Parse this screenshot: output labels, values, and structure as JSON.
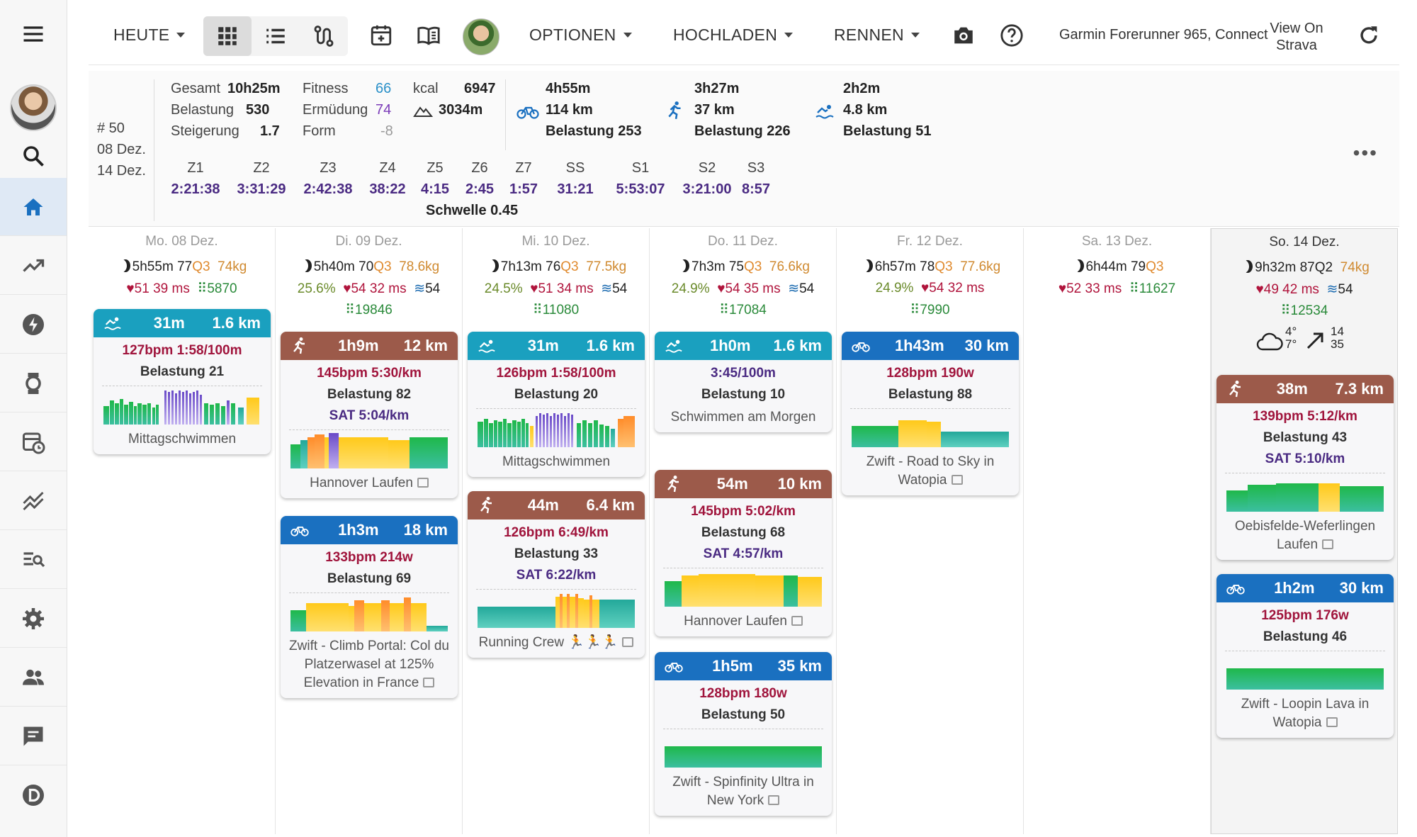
{
  "toolbar": {
    "today_label": "HEUTE",
    "options_label": "OPTIONEN",
    "upload_label": "HOCHLADEN",
    "race_label": "RENNEN",
    "device_text": "Garmin Forerunner 965, Connect",
    "strava_line1": "View On",
    "strava_line2": "Strava"
  },
  "summary": {
    "week_no": "# 50",
    "from": "08 Dez.",
    "to": "14 Dez.",
    "gesamt_lbl": "Gesamt",
    "gesamt_val": "10h25m",
    "belastung_lbl": "Belastung",
    "belastung_val": "530",
    "steigerung_lbl": "Steigerung",
    "steigerung_val": "1.7",
    "fitness_lbl": "Fitness",
    "fitness_val": "66",
    "ermuedung_lbl": "Ermüdung",
    "ermuedung_val": "74",
    "form_lbl": "Form",
    "form_val": "-8",
    "kcal_lbl": "kcal",
    "kcal_val": "6947",
    "elev_val": "3034m",
    "bike": {
      "time": "4h55m",
      "dist": "114 km",
      "load": "Belastung 253"
    },
    "run": {
      "time": "3h27m",
      "dist": "37 km",
      "load": "Belastung 226"
    },
    "swim": {
      "time": "2h2m",
      "dist": "4.8 km",
      "load": "Belastung 51"
    },
    "zones": [
      {
        "label": "Z1",
        "value": "2:21:38"
      },
      {
        "label": "Z2",
        "value": "3:31:29"
      },
      {
        "label": "Z3",
        "value": "2:42:38"
      },
      {
        "label": "Z4",
        "value": "38:22"
      },
      {
        "label": "Z5",
        "value": "4:15"
      },
      {
        "label": "Z6",
        "value": "2:45"
      },
      {
        "label": "Z7",
        "value": "1:57"
      },
      {
        "label": "SS",
        "value": "31:21"
      },
      {
        "label": "S1",
        "value": "5:53:07"
      },
      {
        "label": "S2",
        "value": "3:21:00"
      },
      {
        "label": "S3",
        "value": "8:57"
      }
    ],
    "schwelle": "Schwelle 0.45"
  },
  "days": [
    {
      "date": "Mo. 08 Dez.",
      "sleep": "5h55m",
      "score": "77",
      "q": "Q3",
      "weight": "74kg",
      "pct": "",
      "hrv": "51 39 ms",
      "wave": "",
      "steps": "5870"
    },
    {
      "date": "Di. 09 Dez.",
      "sleep": "5h40m",
      "score": "70",
      "q": "Q3",
      "weight": "78.6kg",
      "pct": "25.6%",
      "hrv": "54 32 ms",
      "wave": "54",
      "steps": "19846"
    },
    {
      "date": "Mi. 10 Dez.",
      "sleep": "7h13m",
      "score": "76",
      "q": "Q3",
      "weight": "77.5kg",
      "pct": "24.5%",
      "hrv": "51 34 ms",
      "wave": "54",
      "steps": "11080"
    },
    {
      "date": "Do. 11 Dez.",
      "sleep": "7h3m",
      "score": "75",
      "q": "Q3",
      "weight": "76.6kg",
      "pct": "24.9%",
      "hrv": "54 35 ms",
      "wave": "54",
      "steps": "17084"
    },
    {
      "date": "Fr. 12 Dez.",
      "sleep": "6h57m",
      "score": "78",
      "q": "Q3",
      "weight": "77.6kg",
      "pct": "24.9%",
      "hrv": "54 32 ms",
      "wave": "",
      "steps": "7990"
    },
    {
      "date": "Sa. 13 Dez.",
      "sleep": "6h44m",
      "score": "79",
      "q": "Q3",
      "weight": "",
      "pct": "",
      "hrv": "52 33 ms",
      "wave": "",
      "steps": "11627"
    },
    {
      "date": "So. 14 Dez.",
      "sleep": "9h32m",
      "score": "87",
      "q": "Q2",
      "weight": "74kg",
      "pct": "",
      "hrv": "49 42 ms",
      "wave": "54",
      "steps": "12534",
      "weather_temp": "4°",
      "weather_temp2": "7°",
      "wind1": "14",
      "wind2": "35"
    }
  ],
  "cards": {
    "mon_swim": {
      "dur": "31m",
      "dist": "1.6 km",
      "l1": "127bpm 1:58/100m",
      "l2": "Belastung 21",
      "name": "Mittagschwimmen"
    },
    "tue_run": {
      "dur": "1h9m",
      "dist": "12 km",
      "l1": "145bpm 5:30/km",
      "l2": "Belastung 82",
      "l3": "SAT 5:04/km",
      "name": "Hannover Laufen"
    },
    "tue_bike": {
      "dur": "1h3m",
      "dist": "18 km",
      "l1": "133bpm 214w",
      "l2": "Belastung 69",
      "name": "Zwift - Climb Portal: Col du Platzerwasel at 125% Elevation in France"
    },
    "wed_swim": {
      "dur": "31m",
      "dist": "1.6 km",
      "l1": "126bpm 1:58/100m",
      "l2": "Belastung 20",
      "name": "Mittagschwimmen"
    },
    "wed_run": {
      "dur": "44m",
      "dist": "6.4 km",
      "l1": "126bpm 6:49/km",
      "l2": "Belastung 33",
      "l3": "SAT 6:22/km",
      "name": "Running Crew 🏃🏃🏃"
    },
    "thu_swim": {
      "dur": "1h0m",
      "dist": "1.6 km",
      "l1": "3:45/100m",
      "l2": "Belastung 10",
      "name": "Schwimmen am Morgen"
    },
    "thu_run": {
      "dur": "54m",
      "dist": "10 km",
      "l1": "145bpm 5:02/km",
      "l2": "Belastung 68",
      "l3": "SAT 4:57/km",
      "name": "Hannover Laufen"
    },
    "thu_bike": {
      "dur": "1h5m",
      "dist": "35 km",
      "l1": "128bpm 180w",
      "l2": "Belastung 50",
      "name": "Zwift - Spinfinity Ultra in New York"
    },
    "fri_bike": {
      "dur": "1h43m",
      "dist": "30 km",
      "l1": "128bpm 190w",
      "l2": "Belastung 88",
      "name": "Zwift - Road to Sky in Watopia"
    },
    "sun_run": {
      "dur": "38m",
      "dist": "7.3 km",
      "l1": "139bpm 5:12/km",
      "l2": "Belastung 43",
      "l3": "SAT 5:10/km",
      "name": "Oebisfelde-Weferlingen Laufen"
    },
    "sun_bike": {
      "dur": "1h2m",
      "dist": "30 km",
      "l1": "125bpm 176w",
      "l2": "Belastung 46",
      "name": "Zwift - Loopin Lava in Watopia"
    }
  },
  "colors": {
    "swim": "#1aa0bf",
    "run": "#9c5a4a",
    "bike": "#1a70c0",
    "accent": "#1a70c0"
  },
  "sidebar_icons": [
    "menu-icon",
    "avatar",
    "search-icon",
    "home-icon",
    "trending-up-icon",
    "bolt-icon",
    "watch-icon",
    "calendar-clock-icon",
    "chart-lines-icon",
    "list-search-icon",
    "gear-icon",
    "people-icon",
    "chat-icon",
    "d-logo-icon"
  ]
}
